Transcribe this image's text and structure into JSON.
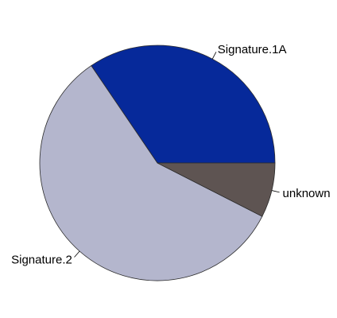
{
  "chart_data": {
    "type": "pie",
    "title": "",
    "slices": [
      {
        "label": "Signature.1A",
        "value": 34.5,
        "color": "#06299a"
      },
      {
        "label": "Signature.2",
        "value": 58.0,
        "color": "#b4b6cd"
      },
      {
        "label": "unknown",
        "value": 7.5,
        "color": "#5e5452"
      }
    ],
    "start_direction": "counterclockwise from 3 o'clock",
    "legend": "none (labels on slices)"
  }
}
